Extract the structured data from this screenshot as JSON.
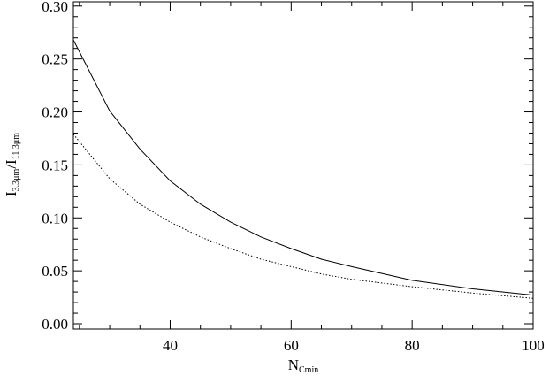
{
  "chart_data": {
    "type": "line",
    "x_label": [
      "N",
      "Cmin"
    ],
    "y_label": [
      "I",
      "3.3μm",
      "/I",
      "11.3μm"
    ],
    "series": [
      {
        "color": "#000000",
        "dash": "solid",
        "x": [
          24,
          30,
          35,
          40,
          45,
          50,
          55,
          60,
          65,
          70,
          80,
          90,
          100
        ],
        "values": [
          0.268,
          0.201,
          0.165,
          0.135,
          0.113,
          0.096,
          0.082,
          0.071,
          0.061,
          0.054,
          0.041,
          0.033,
          0.027
        ]
      },
      {
        "color": "#000000",
        "dash": "dotted",
        "x": [
          24,
          30,
          35,
          40,
          45,
          50,
          55,
          60,
          65,
          70,
          80,
          90,
          100
        ],
        "values": [
          0.179,
          0.137,
          0.113,
          0.096,
          0.082,
          0.071,
          0.061,
          0.054,
          0.047,
          0.042,
          0.035,
          0.029,
          0.024
        ]
      }
    ],
    "xlim": [
      24,
      100
    ],
    "ylim": [
      -0.005,
      0.304
    ],
    "xticks": [
      40,
      60,
      80,
      100
    ],
    "xminorticks": [
      25,
      30,
      35,
      45,
      50,
      55,
      65,
      70,
      75,
      85,
      90,
      95
    ],
    "yticks": [
      {
        "value": 0,
        "label": "0.00"
      },
      {
        "value": 0.05,
        "label": "0.05"
      },
      {
        "value": 0.1,
        "label": "0.10"
      },
      {
        "value": 0.15,
        "label": "0.15"
      },
      {
        "value": 0.2,
        "label": "0.20"
      },
      {
        "value": 0.25,
        "label": "0.25"
      },
      {
        "value": 0.3,
        "label": "0.30"
      }
    ],
    "yminorticks": [
      0.01,
      0.02,
      0.03,
      0.04,
      0.06,
      0.07,
      0.08,
      0.09,
      0.11,
      0.12,
      0.13,
      0.14,
      0.16,
      0.17,
      0.18,
      0.19,
      0.21,
      0.22,
      0.23,
      0.24,
      0.26,
      0.27,
      0.28,
      0.29
    ],
    "grid": false
  }
}
